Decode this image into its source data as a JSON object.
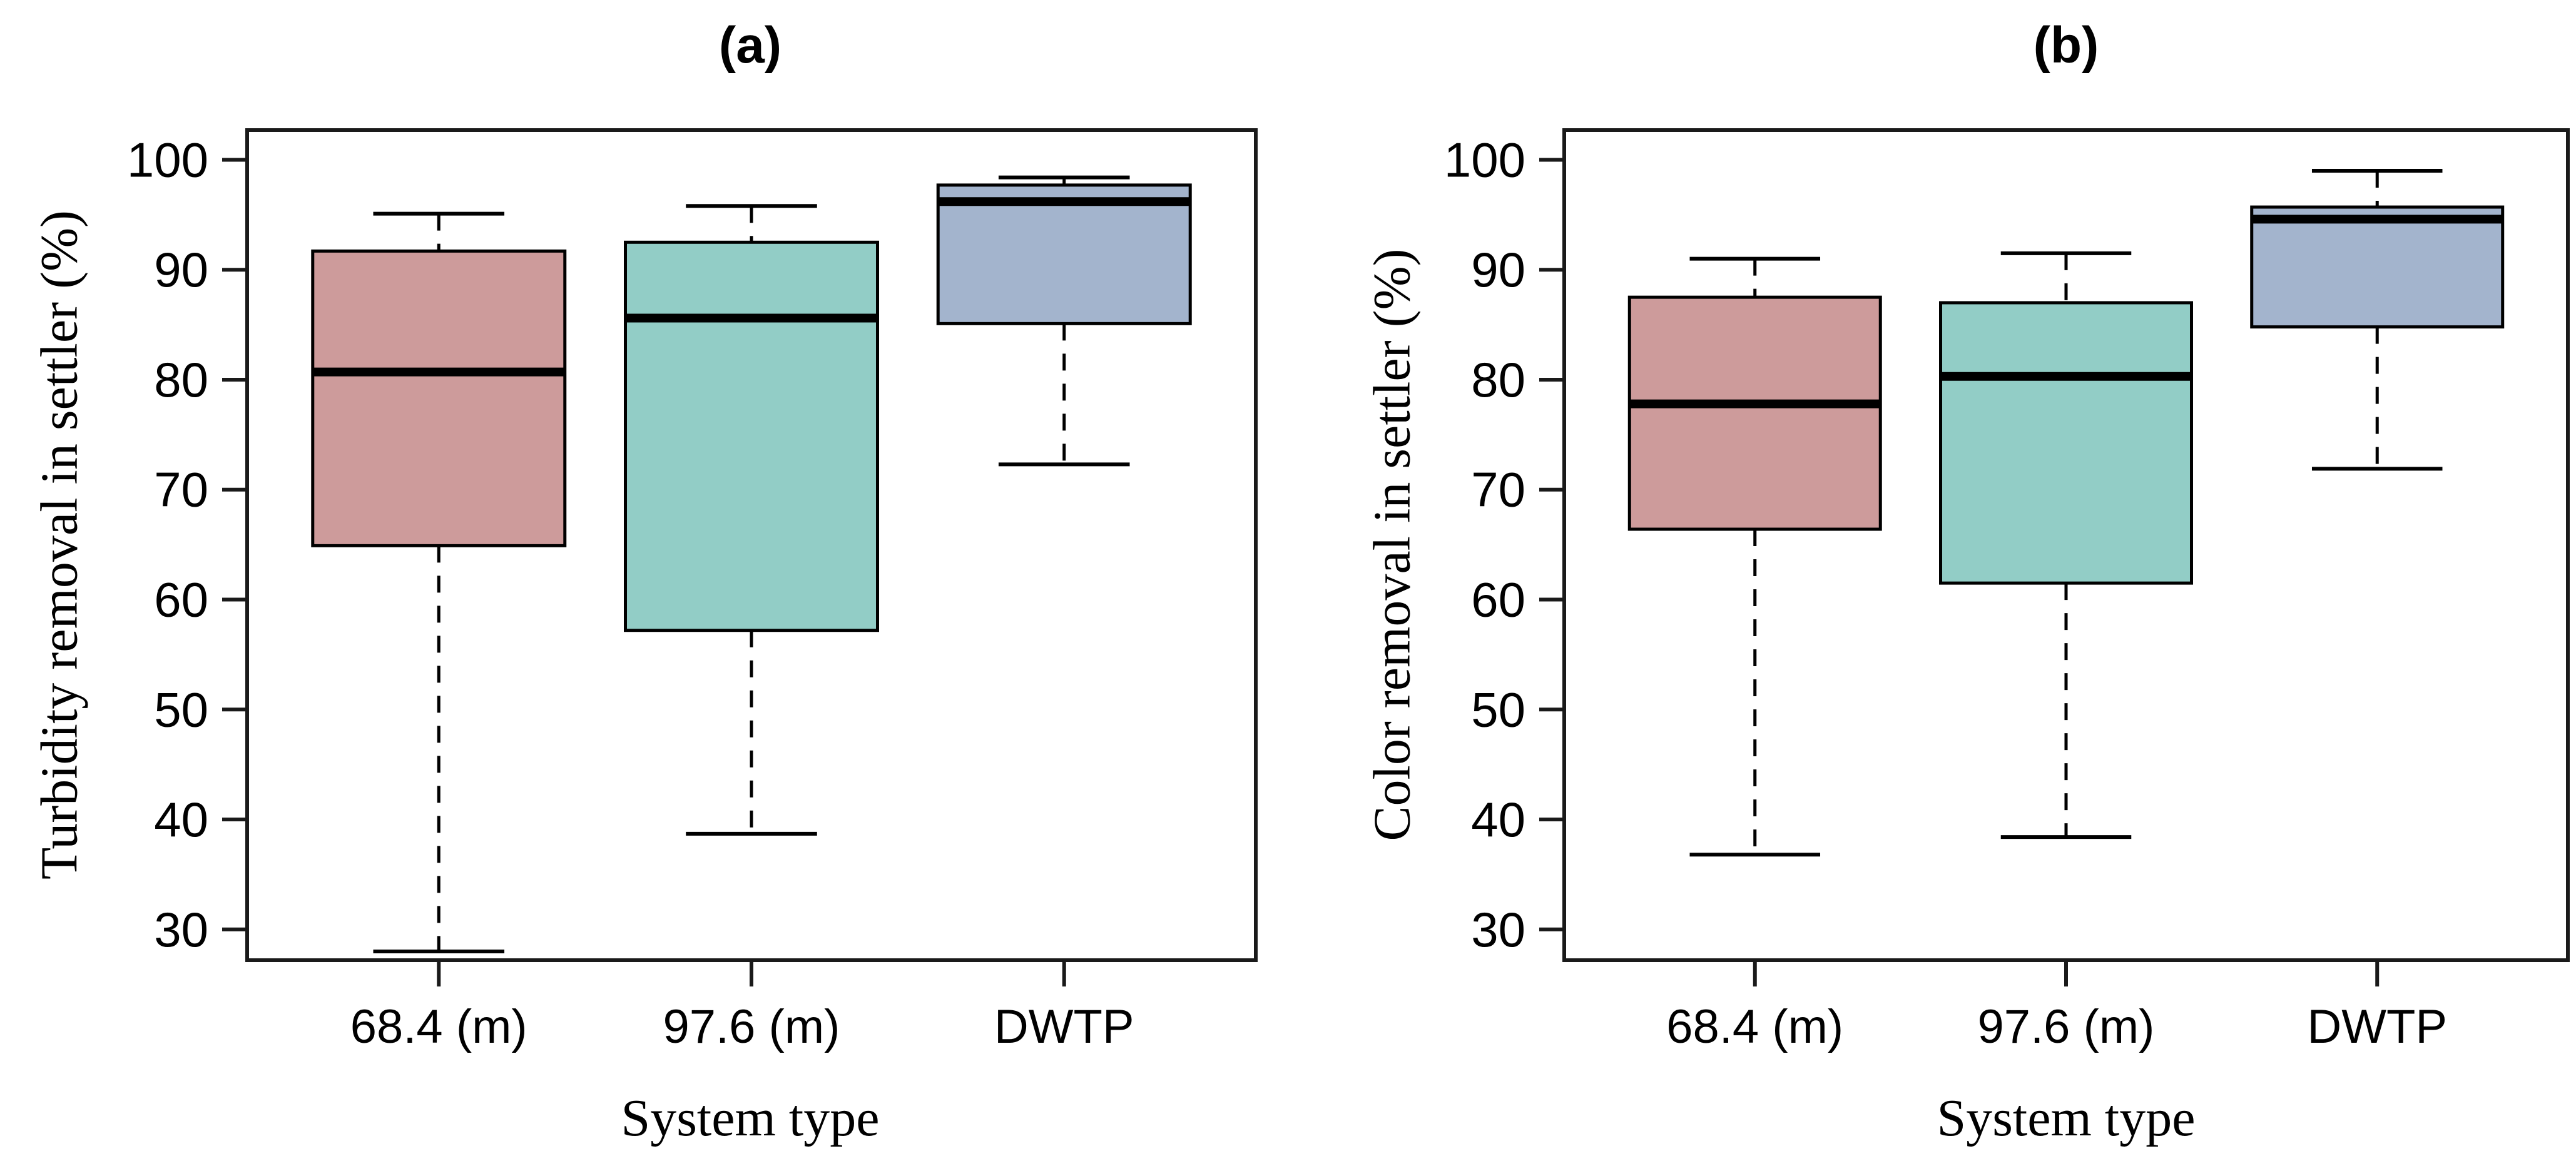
{
  "figure": {
    "background": "#ffffff",
    "axis_color": "#1a1a1a",
    "panel_a_title": "(a)",
    "panel_b_title": "(b)"
  },
  "chart_data": [
    {
      "type": "boxplot",
      "title": "(a)",
      "xlabel": "System type",
      "ylabel": "Turbidity removal in settler (%)",
      "categories": [
        "68.4 (m)",
        "97.6 (m)",
        "DWTP"
      ],
      "yticks": [
        30,
        40,
        50,
        60,
        70,
        80,
        90,
        100
      ],
      "ylim": [
        27.2,
        102.7
      ],
      "grid": false,
      "whisker_style": "dashed",
      "series": [
        {
          "label": "68.4 (m)",
          "color": "#CD9B9B",
          "whisker_low": 28.0,
          "q1": 64.9,
          "median": 80.7,
          "q3": 91.7,
          "whisker_high": 95.1
        },
        {
          "label": "97.6 (m)",
          "color": "#92CDC6",
          "whisker_low": 38.7,
          "q1": 57.2,
          "median": 85.6,
          "q3": 92.5,
          "whisker_high": 95.8
        },
        {
          "label": "DWTP",
          "color": "#A3B4CD",
          "whisker_low": 72.3,
          "q1": 85.1,
          "median": 96.2,
          "q3": 97.7,
          "whisker_high": 98.4
        }
      ]
    },
    {
      "type": "boxplot",
      "title": "(b)",
      "xlabel": "System type",
      "ylabel": "Color removal in settler (%)",
      "categories": [
        "68.4 (m)",
        "97.6 (m)",
        "DWTP"
      ],
      "yticks": [
        30,
        40,
        50,
        60,
        70,
        80,
        90,
        100
      ],
      "ylim": [
        27.2,
        102.7
      ],
      "grid": false,
      "whisker_style": "dashed",
      "series": [
        {
          "label": "68.4 (m)",
          "color": "#CD9B9B",
          "whisker_low": 36.8,
          "q1": 66.4,
          "median": 77.8,
          "q3": 87.5,
          "whisker_high": 91.0
        },
        {
          "label": "97.6 (m)",
          "color": "#92CDC6",
          "whisker_low": 38.4,
          "q1": 61.5,
          "median": 80.3,
          "q3": 87.0,
          "whisker_high": 91.5
        },
        {
          "label": "DWTP",
          "color": "#A3B4CD",
          "whisker_low": 71.9,
          "q1": 84.8,
          "median": 94.6,
          "q3": 95.7,
          "whisker_high": 99.0
        }
      ]
    }
  ]
}
